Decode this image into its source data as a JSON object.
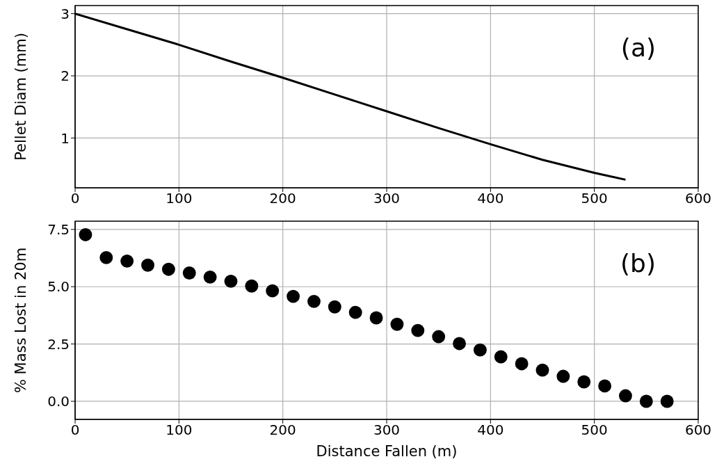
{
  "chart_data": [
    {
      "type": "line",
      "ylabel": "Pellet Diam (mm)",
      "annotations": [
        "(a)"
      ],
      "x": [
        0,
        50,
        100,
        150,
        200,
        250,
        300,
        350,
        400,
        450,
        500,
        530
      ],
      "series": [
        {
          "color": "#000000",
          "values": [
            3,
            2.75,
            2.5,
            2.23,
            1.97,
            1.7,
            1.43,
            1.16,
            0.9,
            0.65,
            0.44,
            0.33
          ]
        }
      ],
      "xlim": [
        0,
        600
      ],
      "xticks": [
        0,
        100,
        200,
        300,
        400,
        500,
        600
      ],
      "ylim": [
        0.2,
        3.13
      ],
      "yticks": [
        1,
        2,
        3
      ],
      "grid": true,
      "marker": "none",
      "line_style": "solid"
    },
    {
      "type": "scatter",
      "xlabel": "Distance Fallen (m)",
      "ylabel": "% Mass Lost in 20m",
      "annotations": [
        "(b)"
      ],
      "x": [
        10,
        30,
        50,
        70,
        90,
        110,
        130,
        150,
        170,
        190,
        210,
        230,
        250,
        270,
        290,
        310,
        330,
        350,
        370,
        390,
        410,
        430,
        450,
        470,
        490,
        510,
        530,
        550,
        570
      ],
      "series": [
        {
          "color": "#000000",
          "values": [
            7.27,
            6.27,
            6.12,
            5.94,
            5.76,
            5.6,
            5.42,
            5.24,
            5.03,
            4.82,
            4.58,
            4.36,
            4.12,
            3.88,
            3.64,
            3.36,
            3.09,
            2.82,
            2.52,
            2.24,
            1.94,
            1.64,
            1.36,
            1.09,
            0.85,
            0.67,
            0.24,
            0,
            0
          ]
        }
      ],
      "xlim": [
        0,
        600
      ],
      "xticks": [
        0,
        100,
        200,
        300,
        400,
        500,
        600
      ],
      "ylim": [
        -0.79,
        7.86
      ],
      "yticks": [
        {
          "value": 0,
          "label": "0.0"
        },
        {
          "value": 2.5,
          "label": "2.5"
        },
        {
          "value": 5,
          "label": "5.0"
        },
        {
          "value": 7.5,
          "label": "7.5"
        }
      ],
      "grid": true,
      "marker": "circle"
    }
  ]
}
